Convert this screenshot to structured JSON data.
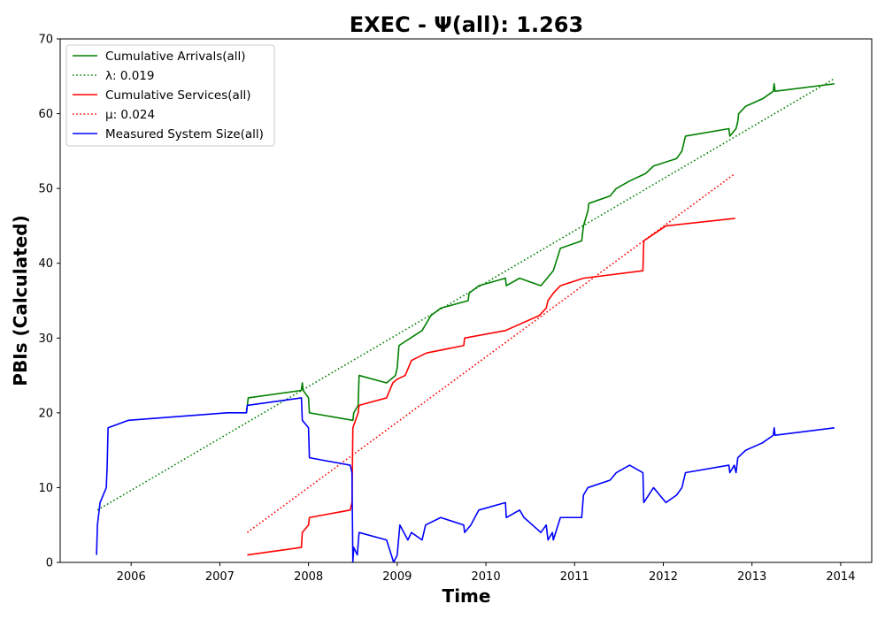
{
  "chart_data": {
    "type": "line",
    "title": "EXEC -  Ψ(all): 1.263",
    "xlabel": "Time",
    "ylabel": "PBIs (Calculated)",
    "xlim": [
      2005.2,
      2014.35
    ],
    "ylim": [
      0,
      70
    ],
    "xticks": [
      2006,
      2007,
      2008,
      2009,
      2010,
      2011,
      2012,
      2013,
      2014
    ],
    "yticks": [
      0,
      10,
      20,
      30,
      40,
      50,
      60,
      70
    ],
    "grid": false,
    "legend_position": "top-left",
    "series": [
      {
        "name": "Cumulative Arrivals(all)",
        "style": "solid",
        "color": "#008000",
        "points": [
          [
            2007.3,
            20
          ],
          [
            2007.32,
            22
          ],
          [
            2007.92,
            23
          ],
          [
            2007.93,
            24
          ],
          [
            2007.94,
            23
          ],
          [
            2008.0,
            22
          ],
          [
            2008.01,
            20
          ],
          [
            2008.5,
            19
          ],
          [
            2008.51,
            20
          ],
          [
            2008.56,
            21
          ],
          [
            2008.57,
            25
          ],
          [
            2008.88,
            24
          ],
          [
            2008.98,
            25
          ],
          [
            2009.0,
            26
          ],
          [
            2009.02,
            29
          ],
          [
            2009.28,
            31
          ],
          [
            2009.38,
            33
          ],
          [
            2009.49,
            34
          ],
          [
            2009.8,
            35
          ],
          [
            2009.81,
            36
          ],
          [
            2009.92,
            37
          ],
          [
            2010.22,
            38
          ],
          [
            2010.23,
            37
          ],
          [
            2010.38,
            38
          ],
          [
            2010.62,
            37
          ],
          [
            2010.76,
            39
          ],
          [
            2010.84,
            42
          ],
          [
            2011.08,
            43
          ],
          [
            2011.1,
            45
          ],
          [
            2011.15,
            47
          ],
          [
            2011.16,
            48
          ],
          [
            2011.4,
            49
          ],
          [
            2011.47,
            50
          ],
          [
            2011.62,
            51
          ],
          [
            2011.8,
            52
          ],
          [
            2011.89,
            53
          ],
          [
            2012.15,
            54
          ],
          [
            2012.21,
            55
          ],
          [
            2012.25,
            57
          ],
          [
            2012.74,
            58
          ],
          [
            2012.75,
            57
          ],
          [
            2012.82,
            58
          ],
          [
            2012.84,
            59
          ],
          [
            2012.85,
            60
          ],
          [
            2012.93,
            61
          ],
          [
            2013.12,
            62
          ],
          [
            2013.24,
            63
          ],
          [
            2013.25,
            64
          ],
          [
            2013.26,
            63
          ],
          [
            2013.93,
            64
          ]
        ]
      },
      {
        "name": "λ: 0.019",
        "style": "dotted",
        "color": "#008000",
        "points": [
          [
            2005.62,
            7
          ],
          [
            2013.93,
            64.7
          ]
        ]
      },
      {
        "name": "Cumulative Services(all)",
        "style": "solid",
        "color": "#ff0000",
        "points": [
          [
            2007.31,
            1
          ],
          [
            2007.92,
            2
          ],
          [
            2007.93,
            4
          ],
          [
            2008.0,
            5
          ],
          [
            2008.01,
            6
          ],
          [
            2008.47,
            7
          ],
          [
            2008.49,
            8
          ],
          [
            2008.5,
            18
          ],
          [
            2008.56,
            20
          ],
          [
            2008.57,
            21
          ],
          [
            2008.88,
            22
          ],
          [
            2008.95,
            24
          ],
          [
            2009.0,
            24.5
          ],
          [
            2009.09,
            25
          ],
          [
            2009.16,
            27
          ],
          [
            2009.33,
            28
          ],
          [
            2009.75,
            29
          ],
          [
            2009.76,
            30
          ],
          [
            2010.22,
            31
          ],
          [
            2010.6,
            33
          ],
          [
            2010.68,
            34
          ],
          [
            2010.7,
            35
          ],
          [
            2010.76,
            36
          ],
          [
            2010.84,
            37
          ],
          [
            2011.1,
            38
          ],
          [
            2011.77,
            39
          ],
          [
            2011.78,
            43
          ],
          [
            2012.03,
            45
          ],
          [
            2012.81,
            46
          ]
        ]
      },
      {
        "name": "μ: 0.024",
        "style": "dotted",
        "color": "#ff0000",
        "points": [
          [
            2007.31,
            4
          ],
          [
            2012.81,
            52
          ]
        ]
      },
      {
        "name": "Measured System Size(all)",
        "style": "solid",
        "color": "#0000ff",
        "points": [
          [
            2005.61,
            1
          ],
          [
            2005.62,
            5
          ],
          [
            2005.65,
            8
          ],
          [
            2005.72,
            10
          ],
          [
            2005.73,
            13
          ],
          [
            2005.74,
            18
          ],
          [
            2005.97,
            19
          ],
          [
            2007.08,
            20
          ],
          [
            2007.3,
            20
          ],
          [
            2007.31,
            21
          ],
          [
            2007.92,
            22
          ],
          [
            2007.93,
            19
          ],
          [
            2008.0,
            18
          ],
          [
            2008.01,
            14
          ],
          [
            2008.47,
            13
          ],
          [
            2008.49,
            12
          ],
          [
            2008.5,
            0
          ],
          [
            2008.51,
            2
          ],
          [
            2008.55,
            1
          ],
          [
            2008.57,
            4
          ],
          [
            2008.88,
            3
          ],
          [
            2008.96,
            0
          ],
          [
            2009.0,
            1
          ],
          [
            2009.03,
            5
          ],
          [
            2009.12,
            3
          ],
          [
            2009.16,
            4
          ],
          [
            2009.28,
            3
          ],
          [
            2009.32,
            5
          ],
          [
            2009.49,
            6
          ],
          [
            2009.75,
            5
          ],
          [
            2009.76,
            4
          ],
          [
            2009.83,
            5
          ],
          [
            2009.92,
            7
          ],
          [
            2010.22,
            8
          ],
          [
            2010.23,
            6
          ],
          [
            2010.38,
            7
          ],
          [
            2010.43,
            6
          ],
          [
            2010.62,
            4
          ],
          [
            2010.68,
            5
          ],
          [
            2010.7,
            3
          ],
          [
            2010.75,
            4
          ],
          [
            2010.76,
            3
          ],
          [
            2010.84,
            6
          ],
          [
            2011.08,
            6
          ],
          [
            2011.1,
            9
          ],
          [
            2011.15,
            10
          ],
          [
            2011.4,
            11
          ],
          [
            2011.47,
            12
          ],
          [
            2011.62,
            13
          ],
          [
            2011.77,
            12
          ],
          [
            2011.78,
            8
          ],
          [
            2011.89,
            10
          ],
          [
            2012.03,
            8
          ],
          [
            2012.15,
            9
          ],
          [
            2012.21,
            10
          ],
          [
            2012.25,
            12
          ],
          [
            2012.74,
            13
          ],
          [
            2012.75,
            12
          ],
          [
            2012.8,
            13
          ],
          [
            2012.82,
            12
          ],
          [
            2012.84,
            14
          ],
          [
            2012.93,
            15
          ],
          [
            2013.12,
            16
          ],
          [
            2013.24,
            17
          ],
          [
            2013.25,
            18
          ],
          [
            2013.26,
            17
          ],
          [
            2013.93,
            18
          ]
        ]
      }
    ]
  }
}
